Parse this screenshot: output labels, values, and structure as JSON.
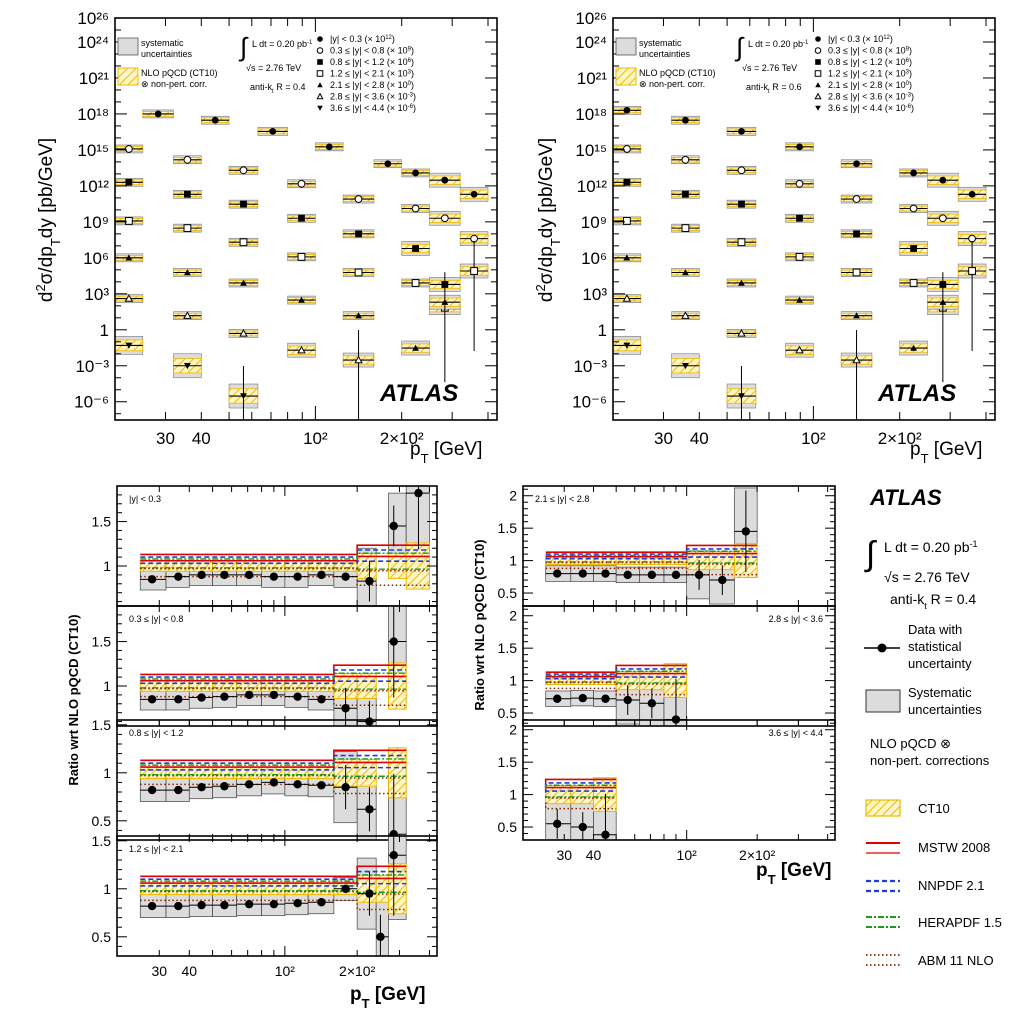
{
  "figure": {
    "atlas_label": "ATLAS",
    "colors": {
      "ct10": "#f5c400",
      "mstw": "#e00000",
      "nnpdf": "#1f3be0",
      "herapdf": "#1a9a1a",
      "abm": "#8b2500",
      "syst": "#dcdcdc"
    }
  },
  "top_panels": [
    {
      "info": {
        "lumi": "L dt = 0.20 pb",
        "lumi_sup": "-1",
        "sqrts": "s = 2.76 TeV",
        "jet": "anti-k",
        "jet_sub": "t",
        "radius": "R = 0.4"
      },
      "legend_syst_line1": "systematic",
      "legend_syst_line2": "uncertainties",
      "legend_nlo_line1": "NLO pQCD (CT10)",
      "legend_nlo_line2": "⊗ non-pert. corr.",
      "rapidity_bins": [
        {
          "label": "|y| < 0.3",
          "scale": "(× 10",
          "exp": "12"
        },
        {
          "label": "0.3 ≤ |y| < 0.8",
          "scale": "(× 10",
          "exp": "9"
        },
        {
          "label": "0.8 ≤ |y| < 1.2",
          "scale": "(× 10",
          "exp": "6"
        },
        {
          "label": "1.2 ≤ |y| < 2.1",
          "scale": "(× 10",
          "exp": "3"
        },
        {
          "label": "2.1 ≤ |y| < 2.8",
          "scale": "(× 10",
          "exp": "0"
        },
        {
          "label": "2.8 ≤ |y| < 3.6",
          "scale": "(× 10",
          "exp": "-3"
        },
        {
          "label": "3.6 ≤ |y| < 4.4",
          "scale": "(× 10",
          "exp": "-6"
        }
      ]
    },
    {
      "info": {
        "lumi": "L dt = 0.20 pb",
        "lumi_sup": "-1",
        "sqrts": "s = 2.76 TeV",
        "jet": "anti-k",
        "jet_sub": "t",
        "radius": "R = 0.6"
      },
      "legend_syst_line1": "systematic",
      "legend_syst_line2": "uncertainties",
      "legend_nlo_line1": "NLO pQCD (CT10)",
      "legend_nlo_line2": "⊗ non-pert. corr.",
      "rapidity_bins": [
        {
          "label": "|y| < 0.3",
          "scale": "(× 10",
          "exp": "12"
        },
        {
          "label": "0.3 ≤ |y| < 0.8",
          "scale": "(× 10",
          "exp": "9"
        },
        {
          "label": "0.8 ≤ |y| < 1.2",
          "scale": "(× 10",
          "exp": "6"
        },
        {
          "label": "1.2 ≤ |y| < 2.1",
          "scale": "(× 10",
          "exp": "3"
        },
        {
          "label": "2.1 ≤ |y| < 2.8",
          "scale": "(× 10",
          "exp": "0"
        },
        {
          "label": "2.8 ≤ |y| < 3.6",
          "scale": "(× 10",
          "exp": "-3"
        },
        {
          "label": "3.6 ≤ |y| < 4.4",
          "scale": "(× 10",
          "exp": "-6"
        }
      ]
    }
  ],
  "side_legend": {
    "atlas": "ATLAS",
    "lumi": "L dt = 0.20 pb",
    "lumi_sup": "-1",
    "sqrts": "s = 2.76 TeV",
    "jet": "anti-k",
    "jet_sub": "t",
    "radius": "R = 0.4",
    "data_line1": "Data with",
    "data_line2": "statistical",
    "data_line3": "uncertainty",
    "syst_line1": "Systematic",
    "syst_line2": "uncertainties",
    "nlo_line1": "NLO pQCD ⊗",
    "nlo_line2": "non-pert. corrections",
    "pdfs": [
      "CT10",
      "MSTW 2008",
      "NNPDF 2.1",
      "HERAPDF 1.5",
      "ABM 11 NLO"
    ]
  },
  "chart_data": [
    {
      "type": "scatter",
      "title": "",
      "xlabel": "p_T [GeV]",
      "ylabel": "d²σ/dp_T dy [pb/GeV]",
      "xscale": "log",
      "yscale": "log",
      "xlim": [
        20,
        430
      ],
      "ylim": [
        3e-08,
        1e+26
      ],
      "x_tick_labels": [
        "30",
        "40",
        "10²",
        "2×10²"
      ],
      "y_tick_labels": [
        "10²⁶",
        "10²⁴",
        "10²¹",
        "10¹⁸",
        "10¹⁵",
        "10¹²",
        "10⁹",
        "10⁶",
        "10³",
        "1",
        "10⁻³",
        "10⁻⁶"
      ],
      "pt_bins": [
        20,
        25,
        32,
        40,
        50,
        63,
        80,
        100,
        125,
        160,
        200,
        250,
        320,
        400,
        430
      ],
      "jet_radius": "R = 0.4",
      "series": [
        {
          "name": "|y| < 0.3 (× 10^12)",
          "x": [
            28.5,
            45,
            71,
            113,
            179,
            225,
            284,
            360
          ],
          "y": [
            1e+18,
            3e+17,
            3.5e+16,
            1800000000000000.0,
            70000000000000.0,
            12000000000000.0,
            3000000000000.0,
            200000000000.0
          ]
        },
        {
          "name": "0.3 ≤ |y| < 0.8 (× 10^9)",
          "x": [
            22.5,
            36,
            56.5,
            90,
            142.5,
            225,
            284,
            360
          ],
          "y": [
            1200000000000000.0,
            150000000000000.0,
            20000000000000.0,
            1500000000000.0,
            80000000000.0,
            13000000000.0,
            2000000000.0,
            40000000.0
          ]
        },
        {
          "name": "0.8 ≤ |y| < 1.2 (× 10^6)",
          "x": [
            22.5,
            36,
            56.5,
            90,
            142.5,
            225,
            284
          ],
          "y": [
            2000000000000.0,
            200000000000.0,
            30000000000.0,
            2000000000.0,
            100000000.0,
            6000000.0,
            6000.0
          ]
        },
        {
          "name": "1.2 ≤ |y| < 2.1 (× 10^3)",
          "x": [
            22.5,
            36,
            56.5,
            90,
            142.5,
            225,
            284,
            360
          ],
          "y": [
            1200000000.0,
            300000000.0,
            20000000.0,
            1200000.0,
            60000.0,
            8000.0,
            70.0,
            80000.0
          ]
        },
        {
          "name": "2.1 ≤ |y| < 2.8 (× 1)",
          "x": [
            22.5,
            36,
            56.5,
            90,
            142.5,
            225,
            284
          ],
          "y": [
            1000000.0,
            60000.0,
            8000.0,
            300.0,
            15.0,
            0.03,
            200.0
          ]
        },
        {
          "name": "2.8 ≤ |y| < 3.6 (× 10^-3)",
          "x": [
            22.5,
            36,
            56.5,
            90,
            142.5
          ],
          "y": [
            400.0,
            15.0,
            0.5,
            0.02,
            0.003
          ]
        },
        {
          "name": "3.6 ≤ |y| < 4.4 (× 10^-6)",
          "x": [
            22.5,
            36,
            56.5
          ],
          "y": [
            0.05,
            0.001,
            3e-06
          ]
        }
      ]
    },
    {
      "type": "scatter",
      "title": "",
      "xlabel": "p_T [GeV]",
      "ylabel": "d²σ/dp_T dy [pb/GeV]",
      "xscale": "log",
      "yscale": "log",
      "xlim": [
        20,
        430
      ],
      "ylim": [
        3e-08,
        1e+26
      ],
      "x_tick_labels": [
        "30",
        "40",
        "10²",
        "2×10²"
      ],
      "y_tick_labels": [
        "10²⁶",
        "10²⁴",
        "10²¹",
        "10¹⁸",
        "10¹⁵",
        "10¹²",
        "10⁹",
        "10⁶",
        "10³",
        "1",
        "10⁻³",
        "10⁻⁶"
      ],
      "jet_radius": "R = 0.6",
      "series": [
        {
          "name": "|y| < 0.3 (× 10^12)",
          "x": [
            22.5,
            36,
            56.5,
            90,
            142.5,
            225,
            284,
            360
          ],
          "y": [
            2e+18,
            3e+17,
            3.5e+16,
            1800000000000000.0,
            70000000000000.0,
            12000000000000.0,
            3000000000000.0,
            200000000000.0
          ]
        },
        {
          "name": "0.3 ≤ |y| < 0.8 (× 10^9)",
          "x": [
            22.5,
            36,
            56.5,
            90,
            142.5,
            225,
            284,
            360
          ],
          "y": [
            1200000000000000.0,
            150000000000000.0,
            20000000000000.0,
            1500000000000.0,
            80000000000.0,
            13000000000.0,
            2000000000.0,
            40000000.0
          ]
        },
        {
          "name": "0.8 ≤ |y| < 1.2 (× 10^6)",
          "x": [
            22.5,
            36,
            56.5,
            90,
            142.5,
            225,
            284
          ],
          "y": [
            2000000000000.0,
            200000000000.0,
            30000000000.0,
            2000000000.0,
            100000000.0,
            6000000.0,
            6000.0
          ]
        },
        {
          "name": "1.2 ≤ |y| < 2.1 (× 10^3)",
          "x": [
            22.5,
            36,
            56.5,
            90,
            142.5,
            225,
            284,
            360
          ],
          "y": [
            1200000000.0,
            300000000.0,
            20000000.0,
            1200000.0,
            60000.0,
            8000.0,
            70.0,
            80000.0
          ]
        },
        {
          "name": "2.1 ≤ |y| < 2.8 (× 1)",
          "x": [
            22.5,
            36,
            56.5,
            90,
            142.5,
            225,
            284
          ],
          "y": [
            1000000.0,
            60000.0,
            8000.0,
            300.0,
            15.0,
            0.03,
            200.0
          ]
        },
        {
          "name": "2.8 ≤ |y| < 3.6 (× 10^-3)",
          "x": [
            22.5,
            36,
            56.5,
            90,
            142.5
          ],
          "y": [
            400.0,
            15.0,
            0.5,
            0.02,
            0.003
          ]
        },
        {
          "name": "3.6 ≤ |y| < 4.4 (× 10^-6)",
          "x": [
            22.5,
            36,
            56.5
          ],
          "y": [
            0.05,
            0.001,
            3e-06
          ]
        }
      ]
    },
    {
      "type": "scatter",
      "title": "",
      "ylabel": "Ratio wrt NLO pQCD (CT10)",
      "xlabel": "p_T [GeV]",
      "xscale": "log",
      "x_tick_labels": [
        "30",
        "40",
        "10²",
        "2×10²"
      ],
      "panels": [
        {
          "label": "|y| < 0.3",
          "ylim": [
            0.55,
            1.9
          ],
          "y_tick_labels": [
            "1.5",
            "1"
          ],
          "x": [
            28,
            36,
            45,
            56,
            71,
            90,
            113,
            142,
            179,
            225,
            284,
            360
          ],
          "y": [
            0.85,
            0.88,
            0.9,
            0.9,
            0.9,
            0.88,
            0.88,
            0.9,
            0.88,
            0.83,
            1.45,
            1.82
          ]
        },
        {
          "label": "0.3 ≤ |y| < 0.8",
          "ylim": [
            0.55,
            1.9
          ],
          "y_tick_labels": [
            "1.5",
            "1"
          ],
          "x": [
            28,
            36,
            45,
            56,
            71,
            90,
            113,
            142,
            179,
            225,
            284
          ],
          "y": [
            0.85,
            0.85,
            0.87,
            0.88,
            0.9,
            0.9,
            0.88,
            0.85,
            0.75,
            0.6,
            1.5
          ]
        },
        {
          "label": "0.8 ≤ |y| < 1.2",
          "ylim": [
            0.3,
            1.55
          ],
          "y_tick_labels": [
            "1.5",
            "1",
            "0.5"
          ],
          "x": [
            28,
            36,
            45,
            56,
            71,
            90,
            113,
            142,
            179,
            225,
            284
          ],
          "y": [
            0.82,
            0.82,
            0.85,
            0.86,
            0.88,
            0.9,
            0.88,
            0.87,
            0.85,
            0.62,
            0.36
          ]
        },
        {
          "label": "1.2 ≤ |y| < 2.1",
          "ylim": [
            0.3,
            1.55
          ],
          "y_tick_labels": [
            "1.5",
            "1",
            "0.5"
          ],
          "x": [
            28,
            36,
            45,
            56,
            71,
            90,
            113,
            142,
            179,
            225,
            250,
            284
          ],
          "y": [
            0.82,
            0.82,
            0.83,
            0.83,
            0.84,
            0.84,
            0.85,
            0.86,
            1.0,
            0.95,
            0.5,
            1.35
          ]
        }
      ]
    },
    {
      "type": "scatter",
      "title": "",
      "ylabel": "Ratio wrt NLO pQCD (CT10)",
      "xlabel": "p_T [GeV]",
      "xscale": "log",
      "x_tick_labels": [
        "30",
        "40",
        "10²",
        "2×10²"
      ],
      "panels": [
        {
          "label": "2.1 ≤ |y| < 2.8",
          "ylim": [
            0.3,
            2.15
          ],
          "y_tick_labels": [
            "2",
            "1.5",
            "1",
            "0.5"
          ],
          "x": [
            28,
            36,
            45,
            56,
            71,
            90,
            113,
            142,
            179
          ],
          "y": [
            0.8,
            0.8,
            0.8,
            0.78,
            0.78,
            0.78,
            0.78,
            0.7,
            1.45
          ]
        },
        {
          "label": "2.8 ≤ |y| < 3.6",
          "ylim": [
            0.3,
            2.15
          ],
          "y_tick_labels": [
            "2",
            "1.5",
            "1",
            "0.5"
          ],
          "x": [
            28,
            36,
            45,
            56,
            71,
            90
          ],
          "y": [
            0.72,
            0.73,
            0.72,
            0.7,
            0.65,
            0.4
          ]
        },
        {
          "label": "3.6 ≤ |y| < 4.4",
          "ylim": [
            0.3,
            2.15
          ],
          "y_tick_labels": [
            "2",
            "1.5",
            "1",
            "0.5"
          ],
          "x": [
            28,
            36,
            45
          ],
          "y": [
            0.55,
            0.5,
            0.38
          ]
        }
      ]
    }
  ]
}
